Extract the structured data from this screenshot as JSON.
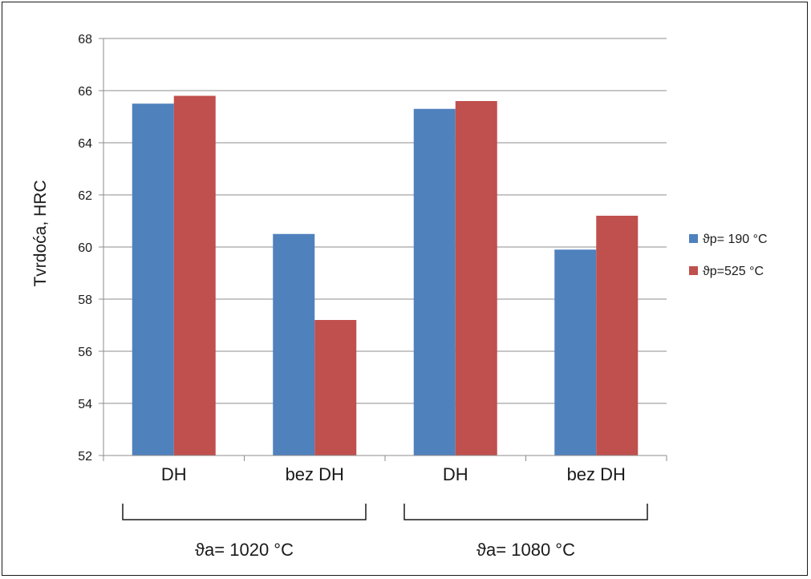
{
  "chart_data": {
    "type": "bar",
    "categories": [
      "DH",
      "bez DH",
      "DH",
      "bez DH"
    ],
    "series": [
      {
        "name": "ϑp= 190 °C",
        "color": "#4f81bd",
        "values": [
          65.5,
          60.5,
          65.3,
          59.9
        ]
      },
      {
        "name": "ϑp=525 °C",
        "color": "#c0504d",
        "values": [
          65.8,
          57.2,
          65.6,
          61.2
        ]
      }
    ],
    "ylabel": "Tvrdoća, HRC",
    "ylim": [
      52,
      68
    ],
    "yticks": [
      52,
      54,
      56,
      58,
      60,
      62,
      64,
      66,
      68
    ],
    "grid": true,
    "legend": "right",
    "groups": [
      {
        "label": "ϑa= 1020 °C",
        "categories": [
          0,
          1
        ]
      },
      {
        "label": "ϑa= 1080 °C",
        "categories": [
          2,
          3
        ]
      }
    ]
  }
}
